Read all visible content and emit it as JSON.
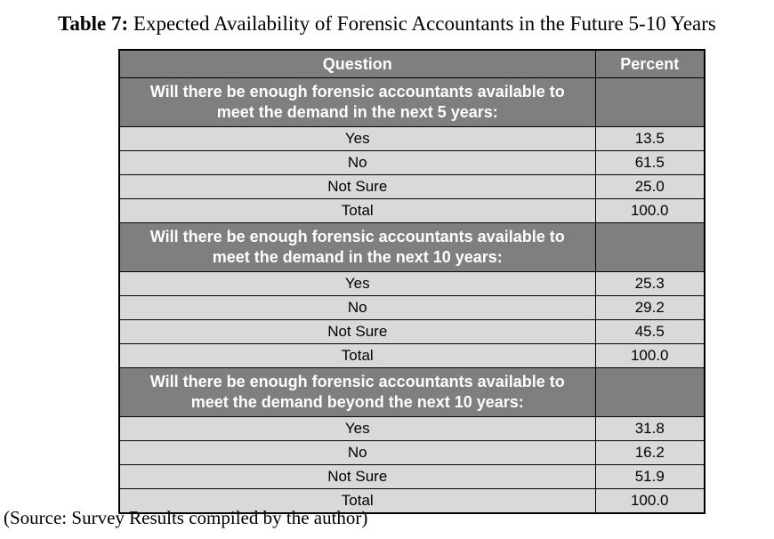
{
  "title": {
    "label": "Table 7:",
    "text": " Expected Availability of Forensic Accountants in the Future 5-10 Years"
  },
  "table": {
    "columns": [
      "Question",
      "Percent"
    ],
    "sections": [
      {
        "question": "Will there be enough forensic accountants available to meet the demand in the next 5 years:",
        "rows": [
          {
            "label": "Yes",
            "percent": "13.5"
          },
          {
            "label": "No",
            "percent": "61.5"
          },
          {
            "label": "Not Sure",
            "percent": "25.0"
          },
          {
            "label": "Total",
            "percent": "100.0"
          }
        ]
      },
      {
        "question": "Will there be enough forensic accountants available to meet the demand in the next 10 years:",
        "rows": [
          {
            "label": "Yes",
            "percent": "25.3"
          },
          {
            "label": "No",
            "percent": "29.2"
          },
          {
            "label": "Not Sure",
            "percent": "45.5"
          },
          {
            "label": "Total",
            "percent": "100.0"
          }
        ]
      },
      {
        "question": "Will there be enough forensic accountants available to meet the demand beyond the next 10 years:",
        "rows": [
          {
            "label": "Yes",
            "percent": "31.8"
          },
          {
            "label": "No",
            "percent": "16.2"
          },
          {
            "label": "Not Sure",
            "percent": "51.9"
          },
          {
            "label": "Total",
            "percent": "100.0"
          }
        ]
      }
    ]
  },
  "source": "(Source: Survey Results compiled by the author)",
  "colors": {
    "header_bg": "#7f7f7f",
    "row_bg": "#d9d9d9",
    "border": "#000000",
    "header_text": "#ffffff",
    "body_text": "#000000"
  }
}
